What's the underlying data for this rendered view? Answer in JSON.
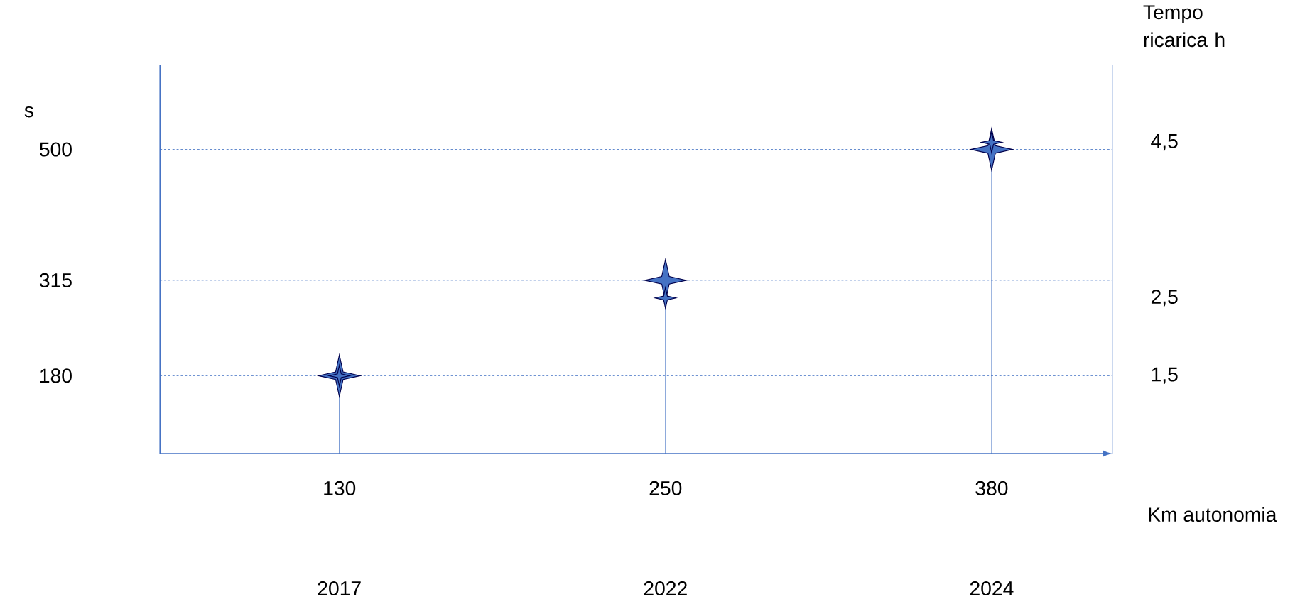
{
  "chart_data": {
    "type": "lollipop",
    "categories": [
      "130",
      "250",
      "380"
    ],
    "xlabel": "Km autonomia",
    "ylabel": "s",
    "y2label": "Tempo ricarica h",
    "series": [
      {
        "color": "#4472c4",
        "values": [
          180,
          315,
          500
        ]
      },
      {
        "color": "#4472c4",
        "values": [
          1.5,
          2.5,
          4.5
        ],
        "axis": "y2",
        "type": "scatter"
      }
    ],
    "ylim": [
      70,
      620
    ],
    "yticks": [
      180,
      315,
      500
    ],
    "y2lim": [
      0.5,
      5.5
    ],
    "y2ticks": [
      {
        "value": 1.5,
        "label": "1,5"
      },
      {
        "value": 2.5,
        "label": "2,5"
      },
      {
        "value": 4.5,
        "label": "4,5"
      }
    ],
    "ref_lines": [
      {
        "axis": "y",
        "value": 180,
        "line_style": "dashed",
        "color": "#4472c4"
      },
      {
        "axis": "y",
        "value": 315,
        "line_style": "dashed",
        "color": "#4472c4"
      },
      {
        "axis": "y",
        "value": 500,
        "line_style": "dashed",
        "color": "#4472c4"
      }
    ],
    "marker": "star",
    "annotations": [
      "2017",
      "2022",
      "2024"
    ]
  }
}
